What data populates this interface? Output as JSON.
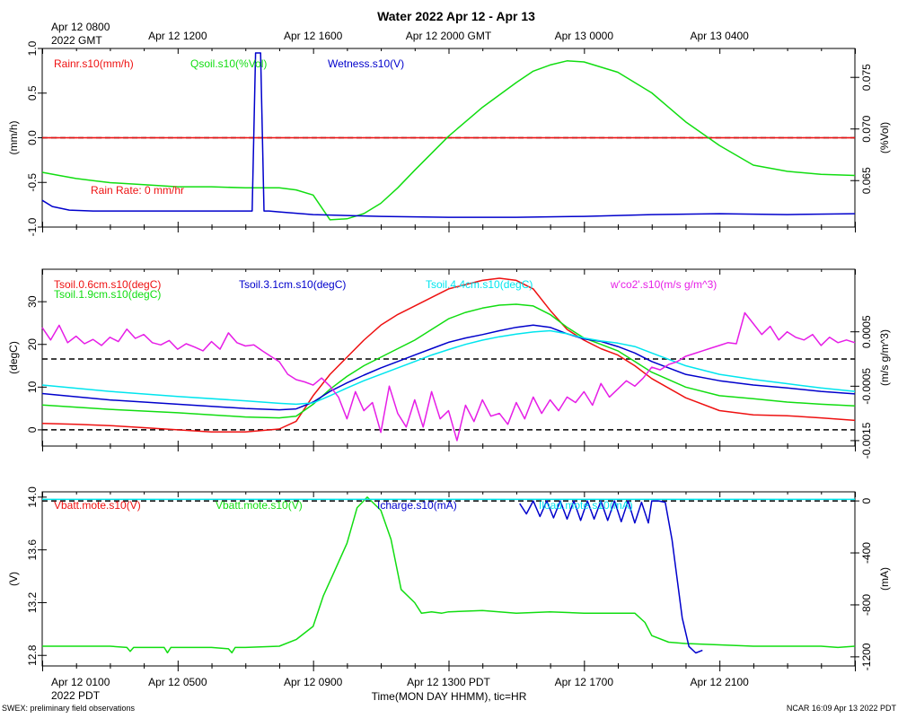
{
  "title": "Water 2022 Apr 12 - Apr 13",
  "top_axis": {
    "first_label": [
      "Apr 12 0800",
      "2022 GMT"
    ],
    "tick_labels": [
      {
        "hour": 4,
        "label": "Apr 12 1200"
      },
      {
        "hour": 8,
        "label": "Apr 12 1600"
      },
      {
        "hour": 12,
        "label": "Apr 12 2000 GMT"
      },
      {
        "hour": 16,
        "label": "Apr 13 0000"
      },
      {
        "hour": 20,
        "label": "Apr 13 0400"
      }
    ]
  },
  "bottom_axis": {
    "first_label": [
      "Apr 12 0100",
      "2022 PDT"
    ],
    "tick_labels": [
      {
        "hour": 4,
        "label": "Apr 12 0500"
      },
      {
        "hour": 8,
        "label": "Apr 12 0900"
      },
      {
        "hour": 12,
        "label": "Apr 12 1300 PDT"
      },
      {
        "hour": 16,
        "label": "Apr 12 1700"
      },
      {
        "hour": 20,
        "label": "Apr 12 2100"
      }
    ],
    "xlabel": "Time(MON DAY HHMM), tic=HR"
  },
  "footer": {
    "left": "SWEX: preliminary field observations",
    "right": "NCAR 16:09 Apr 13 2022 PDT"
  },
  "colors": {
    "red": "#ee1111",
    "green": "#11dd11",
    "blue": "#0000cc",
    "cyan": "#00e5ee",
    "magenta": "#e61ee6",
    "black": "#000000"
  },
  "chart_data": [
    {
      "type": "line",
      "panel": "water",
      "xlim": [
        0,
        24
      ],
      "ylabel": "(mm/h)",
      "ylim": [
        -1.0,
        1.0
      ],
      "y_ticks": [
        -1.0,
        -0.5,
        0.0,
        0.5,
        1.0
      ],
      "y_tick_labels": [
        "-1.0",
        "-0.5",
        "0.0",
        "0.5",
        "1.0"
      ],
      "y2label": "(%Vol)",
      "y2lim": [
        0.0605,
        0.0778
      ],
      "y2_ticks": [
        0.065,
        0.07,
        0.075
      ],
      "y2_tick_labels": [
        "0.065",
        "0.070",
        "0.075"
      ],
      "legend": [
        {
          "text": "Rainr.s10(mm/h)",
          "color": "red"
        },
        {
          "text": "Qsoil.s10(%Vol)",
          "color": "green"
        },
        {
          "text": "Wetness.s10(V)",
          "color": "blue"
        }
      ],
      "annotation": {
        "text": "Rain Rate: 0 mm/hr",
        "color": "red"
      },
      "reference_lines": [
        {
          "axis": "left",
          "y": 0.0,
          "color": "red"
        },
        {
          "axis": "left",
          "y": 0.0,
          "color": "black"
        }
      ],
      "series": [
        {
          "name": "Rainr.s10",
          "color": "red",
          "axis": "left",
          "x": [
            0,
            24
          ],
          "y": [
            0.0,
            0.0
          ]
        },
        {
          "name": "Qsoil.s10",
          "color": "green",
          "axis": "right",
          "x": [
            0,
            0.5,
            1,
            1.5,
            2,
            3,
            4,
            5,
            6,
            7,
            7.5,
            8,
            8.5,
            9,
            9.5,
            10,
            10.5,
            11,
            12,
            13,
            14,
            14.5,
            15,
            15.5,
            16,
            17,
            18,
            18.5,
            19,
            20,
            21,
            22,
            23,
            24
          ],
          "y": [
            0.0658,
            0.0655,
            0.0652,
            0.065,
            0.0648,
            0.0646,
            0.0644,
            0.0644,
            0.0643,
            0.0643,
            0.0641,
            0.0636,
            0.0612,
            0.0613,
            0.0618,
            0.0628,
            0.0643,
            0.066,
            0.0693,
            0.0721,
            0.0745,
            0.0756,
            0.0762,
            0.0766,
            0.0765,
            0.0755,
            0.0735,
            0.0721,
            0.0707,
            0.0684,
            0.0665,
            0.0659,
            0.0656,
            0.0655
          ]
        },
        {
          "name": "Wetness.s10",
          "color": "blue",
          "axis": "left",
          "x": [
            0,
            0.3,
            0.8,
            1.5,
            3,
            5,
            6.2,
            6.3,
            6.45,
            6.55,
            6.7,
            7,
            8,
            10,
            12,
            14,
            16,
            18,
            20,
            22,
            24
          ],
          "y": [
            -0.7,
            -0.77,
            -0.81,
            -0.82,
            -0.82,
            -0.82,
            -0.82,
            0.95,
            0.95,
            -0.82,
            -0.82,
            -0.83,
            -0.86,
            -0.88,
            -0.89,
            -0.89,
            -0.88,
            -0.86,
            -0.85,
            -0.86,
            -0.85
          ]
        }
      ]
    },
    {
      "type": "line",
      "panel": "soil temperature",
      "xlim": [
        0,
        24
      ],
      "ylabel": "(degC)",
      "ylim": [
        -3.8,
        37.6
      ],
      "y_ticks": [
        0,
        10,
        20,
        30
      ],
      "y_tick_labels": [
        "0",
        "10",
        "20",
        "30"
      ],
      "y2label": "(m/s g/m^3)",
      "y2lim": [
        -0.0016,
        0.00165
      ],
      "y2_ticks": [
        -0.0015,
        -0.0005,
        0.0005
      ],
      "y2_tick_labels": [
        "-0.0015",
        "-0.0005",
        "0.0005"
      ],
      "legend": [
        {
          "text": "Tsoil.0.6cm.s10(degC)",
          "color": "red"
        },
        {
          "text": "Tsoil.1.9cm.s10(degC)",
          "color": "green"
        },
        {
          "text": "Tsoil.3.1cm.s10(degC)",
          "color": "blue"
        },
        {
          "text": "Tsoil.4.4cm.s10(degC)",
          "color": "cyan"
        },
        {
          "text": "w'co2'.s10(m/s g/m^3)",
          "color": "magenta"
        }
      ],
      "reference_lines": [
        {
          "axis": "left",
          "y": 0.0,
          "color": "black"
        },
        {
          "axis": "right",
          "y": 0.0,
          "color": "black"
        }
      ],
      "series": [
        {
          "name": "Tsoil.0.6cm.s10",
          "color": "red",
          "axis": "left",
          "x": [
            0,
            1,
            2,
            3,
            4,
            5,
            6,
            7,
            7.5,
            8,
            8.5,
            9,
            9.5,
            10,
            10.5,
            11,
            11.5,
            12,
            12.5,
            13,
            13.5,
            14,
            14.5,
            15,
            15.5,
            16,
            16.5,
            17,
            17.5,
            18,
            19,
            20,
            21,
            22,
            23,
            24
          ],
          "y": [
            1.5,
            1.3,
            1.0,
            0.5,
            0.0,
            -0.5,
            -0.5,
            0.2,
            2.0,
            8.0,
            13.0,
            17.0,
            21.0,
            24.5,
            27.0,
            29.0,
            31.0,
            33.0,
            34.0,
            35.0,
            35.5,
            35.0,
            33.0,
            28.0,
            23.5,
            21.0,
            19.0,
            17.5,
            15.0,
            12.0,
            7.5,
            4.5,
            3.5,
            3.3,
            2.8,
            2.2
          ]
        },
        {
          "name": "Tsoil.1.9cm.s10",
          "color": "green",
          "axis": "left",
          "x": [
            0,
            2,
            4,
            6,
            7,
            7.5,
            8,
            8.5,
            9,
            9.5,
            10,
            10.5,
            11,
            11.5,
            12,
            12.5,
            13,
            13.5,
            14,
            14.5,
            15,
            15.5,
            16,
            16.5,
            17,
            17.5,
            18,
            19,
            20,
            21,
            22,
            23,
            24
          ],
          "y": [
            5.8,
            4.8,
            4.0,
            3.0,
            2.8,
            3.2,
            6.0,
            9.5,
            12.5,
            15.0,
            17.0,
            19.0,
            21.0,
            23.5,
            26.0,
            27.5,
            28.5,
            29.2,
            29.4,
            29.0,
            27.0,
            24.0,
            21.5,
            20.0,
            18.5,
            16.0,
            13.5,
            10.0,
            8.0,
            7.3,
            6.5,
            6.0,
            5.6
          ]
        },
        {
          "name": "Tsoil.3.1cm.s10",
          "color": "blue",
          "axis": "left",
          "x": [
            0,
            2,
            4,
            6,
            7,
            7.5,
            8,
            8.5,
            9,
            9.5,
            10,
            10.5,
            11,
            11.5,
            12,
            12.5,
            13,
            13.5,
            14,
            14.5,
            15,
            15.5,
            16,
            16.5,
            17,
            17.5,
            18,
            19,
            20,
            21,
            22,
            23,
            24
          ],
          "y": [
            8.5,
            7.0,
            6.0,
            5.0,
            4.7,
            4.9,
            6.5,
            9.0,
            11.0,
            12.8,
            14.5,
            16.0,
            17.5,
            19.0,
            20.5,
            21.5,
            22.3,
            23.2,
            24.0,
            24.5,
            24.0,
            22.5,
            21.3,
            20.7,
            19.5,
            18.0,
            16.0,
            13.0,
            11.5,
            10.5,
            9.8,
            9.0,
            8.4
          ]
        },
        {
          "name": "Tsoil.4.4cm.s10",
          "color": "cyan",
          "axis": "left",
          "x": [
            0,
            2,
            4,
            6,
            7,
            7.5,
            8,
            8.5,
            9,
            9.5,
            10,
            10.5,
            11,
            11.5,
            12,
            12.5,
            13,
            13.5,
            14,
            14.5,
            15,
            15.5,
            16,
            16.5,
            17,
            17.5,
            18,
            19,
            20,
            21,
            22,
            23,
            24
          ],
          "y": [
            10.5,
            9.0,
            7.8,
            6.8,
            6.2,
            6.0,
            6.3,
            8.0,
            9.8,
            11.5,
            13.0,
            14.5,
            16.0,
            17.5,
            18.8,
            20.0,
            21.0,
            21.8,
            22.4,
            22.9,
            23.2,
            22.5,
            21.5,
            20.8,
            20.3,
            19.5,
            18.0,
            15.0,
            13.0,
            11.8,
            10.8,
            9.8,
            9.0
          ]
        },
        {
          "name": "w'co2'.s10",
          "color": "magenta",
          "axis": "right",
          "x": [
            0,
            0.25,
            0.5,
            0.75,
            1,
            1.25,
            1.5,
            1.75,
            2,
            2.25,
            2.5,
            2.75,
            3,
            3.25,
            3.5,
            3.75,
            4,
            4.25,
            4.5,
            4.75,
            5,
            5.25,
            5.5,
            5.75,
            6,
            6.25,
            6.5,
            6.75,
            7,
            7.25,
            7.5,
            7.75,
            8,
            8.25,
            8.5,
            8.75,
            9,
            9.25,
            9.5,
            9.75,
            10,
            10.25,
            10.5,
            10.75,
            11,
            11.25,
            11.5,
            11.75,
            12,
            12.25,
            12.5,
            12.75,
            13,
            13.25,
            13.5,
            13.75,
            14,
            14.25,
            14.5,
            14.75,
            15,
            15.25,
            15.5,
            15.75,
            16,
            16.25,
            16.5,
            16.75,
            17,
            17.25,
            17.5,
            17.75,
            18,
            18.25,
            18.5,
            18.75,
            19,
            19.25,
            19.5,
            19.75,
            20,
            20.25,
            20.5,
            20.75,
            21,
            21.25,
            21.5,
            21.75,
            22,
            22.25,
            22.5,
            22.75,
            23,
            23.25,
            23.5,
            23.75,
            24
          ],
          "y": [
            0.00058,
            0.00035,
            0.00062,
            0.0003,
            0.00042,
            0.00028,
            0.00036,
            0.00025,
            0.0004,
            0.00032,
            0.00055,
            0.00038,
            0.00045,
            0.0003,
            0.00026,
            0.00034,
            0.00018,
            0.00028,
            0.00022,
            0.00015,
            0.00032,
            0.00018,
            0.00048,
            0.0003,
            0.00024,
            0.00026,
            0.00015,
            5e-05,
            -5e-05,
            -0.00028,
            -0.00038,
            -0.00042,
            -0.00048,
            -0.00035,
            -0.0005,
            -0.0007,
            -0.0011,
            -0.0006,
            -0.00095,
            -0.0008,
            -0.00135,
            -0.0005,
            -0.001,
            -0.00125,
            -0.00075,
            -0.00125,
            -0.0006,
            -0.0011,
            -0.00095,
            -0.0015,
            -0.00085,
            -0.00115,
            -0.00075,
            -0.00105,
            -0.001,
            -0.0012,
            -0.0008,
            -0.0011,
            -0.0007,
            -0.001,
            -0.00075,
            -0.00095,
            -0.0007,
            -0.0008,
            -0.0006,
            -0.00085,
            -0.00045,
            -0.0007,
            -0.00055,
            -0.0004,
            -0.0005,
            -0.00035,
            -0.00015,
            -0.0002,
            -0.0001,
            -5e-05,
            5e-05,
            0.0001,
            0.00015,
            0.0002,
            0.00025,
            0.0003,
            0.00028,
            0.00085,
            0.00065,
            0.00045,
            0.0006,
            0.00035,
            0.0005,
            0.0004,
            0.00035,
            0.00045,
            0.00025,
            0.0004,
            0.0003,
            0.00035,
            0.0003
          ]
        }
      ]
    },
    {
      "type": "line",
      "panel": "power",
      "xlim": [
        0,
        24
      ],
      "ylabel": "(V)",
      "ylim": [
        12.72,
        14.04
      ],
      "y_ticks": [
        12.8,
        13.2,
        13.6,
        14.0
      ],
      "y_tick_labels": [
        "12.8",
        "13.2",
        "13.6",
        "14.0"
      ],
      "y2label": "(mA)",
      "y2lim": [
        -1270,
        70
      ],
      "y2_ticks": [
        -1200,
        -800,
        -400,
        0
      ],
      "y2_tick_labels": [
        "-1200",
        "-800",
        "-400",
        "0"
      ],
      "legend": [
        {
          "text": "Vbatt.mote.s10(V)",
          "color": "red"
        },
        {
          "text": "Vbatt.mote.s10(V)",
          "color": "green"
        },
        {
          "text": "Icharge.s10(mA)",
          "color": "blue"
        },
        {
          "text": "Iload.mote.s10(mA)",
          "color": "cyan"
        }
      ],
      "reference_lines": [
        {
          "axis": "right",
          "y": 0.0,
          "color": "black"
        }
      ],
      "series": [
        {
          "name": "Vbatt.mote.s10",
          "color": "green",
          "axis": "left",
          "x": [
            0,
            1,
            2,
            2.5,
            2.6,
            2.7,
            3,
            3.6,
            3.7,
            3.8,
            4,
            5,
            5.5,
            5.6,
            5.7,
            6,
            7,
            7.5,
            8,
            8.3,
            8.6,
            9,
            9.3,
            9.6,
            10,
            10.3,
            10.6,
            11,
            11.2,
            11.5,
            11.8,
            12,
            13,
            14,
            15,
            16,
            17,
            17.5,
            17.8,
            18,
            18.5,
            19,
            20,
            21,
            22,
            23,
            23.5,
            24
          ],
          "y": [
            12.87,
            12.87,
            12.87,
            12.86,
            12.83,
            12.86,
            12.86,
            12.86,
            12.82,
            12.86,
            12.86,
            12.86,
            12.85,
            12.82,
            12.86,
            12.86,
            12.87,
            12.92,
            13.02,
            13.25,
            13.42,
            13.65,
            13.92,
            14.0,
            13.9,
            13.68,
            13.3,
            13.2,
            13.12,
            13.13,
            13.12,
            13.13,
            13.14,
            13.12,
            13.13,
            13.12,
            13.12,
            13.12,
            13.05,
            12.95,
            12.9,
            12.89,
            12.88,
            12.87,
            12.87,
            12.87,
            12.86,
            12.87
          ]
        },
        {
          "name": "Icharge.s10",
          "color": "blue",
          "axis": "right",
          "x": [
            14.1,
            14.3,
            14.5,
            14.7,
            14.9,
            15.1,
            15.3,
            15.5,
            15.7,
            15.9,
            16.1,
            16.3,
            16.5,
            16.7,
            16.9,
            17.1,
            17.3,
            17.5,
            17.7,
            17.9,
            18.0,
            18.2,
            18.4,
            18.6,
            18.9,
            19.1,
            19.3,
            19.5
          ],
          "y": [
            -20,
            -100,
            0,
            -120,
            0,
            -130,
            0,
            -140,
            0,
            -150,
            0,
            -140,
            0,
            -150,
            0,
            -160,
            0,
            -170,
            -10,
            -170,
            0,
            0,
            -10,
            -300,
            -900,
            -1120,
            -1170,
            -1150
          ]
        },
        {
          "name": "Iload.mote.s10",
          "color": "cyan",
          "axis": "right",
          "x": [
            0,
            24
          ],
          "y": [
            12,
            12
          ]
        }
      ]
    }
  ]
}
